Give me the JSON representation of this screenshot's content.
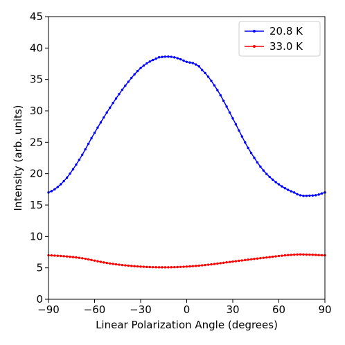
{
  "chart_data": {
    "type": "line",
    "xlabel": "Linear Polarization Angle (degrees)",
    "ylabel": "Intensity (arb. units)",
    "xlim": [
      -90,
      90
    ],
    "ylim": [
      0,
      45
    ],
    "xticks": [
      -90,
      -60,
      -30,
      0,
      30,
      60,
      90
    ],
    "yticks": [
      0,
      5,
      10,
      15,
      20,
      25,
      30,
      35,
      40,
      45
    ],
    "xtick_labels": [
      "−90",
      "−60",
      "−30",
      "0",
      "30",
      "60",
      "90"
    ],
    "ytick_labels": [
      "0",
      "5",
      "10",
      "15",
      "20",
      "25",
      "30",
      "35",
      "40",
      "45"
    ],
    "grid": false,
    "legend_position": "top-right",
    "series": [
      {
        "name": "20.8 K",
        "color": "#0000ff",
        "marker": "dot",
        "x": [
          -90,
          -80,
          -70,
          -60,
          -50,
          -40,
          -30,
          -20,
          -15,
          -10,
          -5,
          0,
          5,
          10,
          20,
          30,
          40,
          50,
          60,
          70,
          75,
          80,
          85,
          90
        ],
        "y": [
          17.0,
          18.8,
          22.2,
          26.5,
          30.5,
          34.0,
          36.8,
          38.3,
          38.6,
          38.6,
          38.3,
          37.8,
          37.5,
          36.5,
          33.3,
          28.8,
          24.1,
          20.5,
          18.3,
          17.0,
          16.5,
          16.5,
          16.6,
          17.0
        ]
      },
      {
        "name": "33.0 K",
        "color": "#ff0000",
        "marker": "dot",
        "x": [
          -90,
          -70,
          -50,
          -30,
          -10,
          10,
          30,
          50,
          70,
          80,
          90
        ],
        "y": [
          7.0,
          6.6,
          5.7,
          5.2,
          5.1,
          5.4,
          6.0,
          6.6,
          7.1,
          7.1,
          7.0
        ]
      }
    ]
  }
}
